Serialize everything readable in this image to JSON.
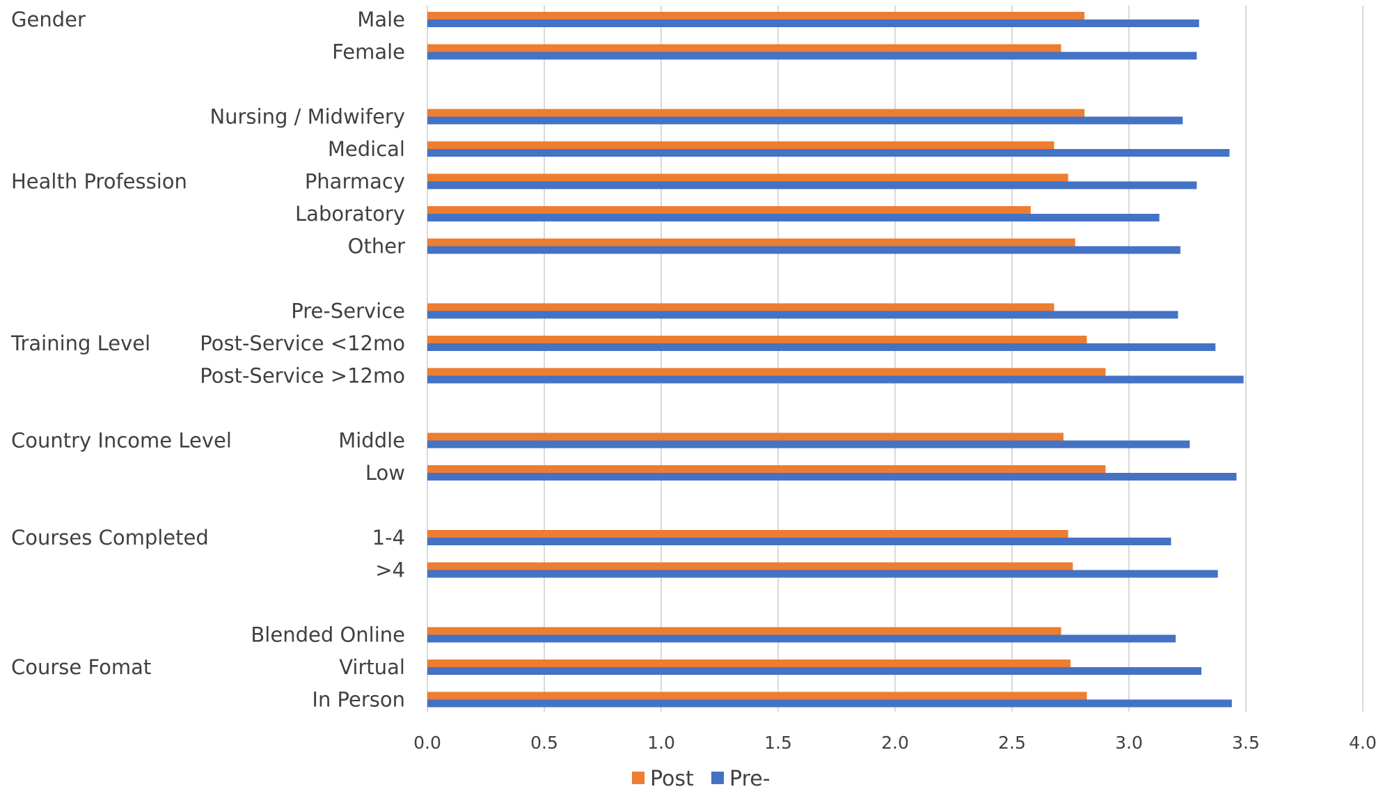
{
  "chart_data": {
    "type": "bar",
    "orientation": "horizontal",
    "title": "",
    "xlabel": "",
    "ylabel": "",
    "xlim": [
      0,
      4
    ],
    "xticks": [
      "0.0",
      "0.5",
      "1.0",
      "1.5",
      "2.0",
      "2.5",
      "3.0",
      "3.5",
      "4.0"
    ],
    "grid": "vertical",
    "legend": "bottom-center",
    "colors": {
      "Post": "#ed7d31",
      "Pre-": "#4472c4"
    },
    "groups": [
      {
        "label": "Gender",
        "categories": [
          "Male",
          "Female"
        ]
      },
      {
        "label": "Health Profession",
        "categories": [
          "Nursing / Midwifery",
          "Medical",
          "Pharmacy",
          "Laboratory",
          "Other"
        ]
      },
      {
        "label": "Training Level",
        "categories": [
          "Pre-Service",
          "Post-Service <12mo",
          "Post-Service >12mo"
        ]
      },
      {
        "label": "Country Income Level",
        "categories": [
          "Middle",
          "Low"
        ]
      },
      {
        "label": "Courses Completed",
        "categories": [
          "1-4",
          ">4"
        ]
      },
      {
        "label": "Course Fomat",
        "categories": [
          "Blended Online",
          "Virtual",
          "In Person"
        ]
      }
    ],
    "series": [
      {
        "name": "Post",
        "values": [
          2.81,
          2.71,
          2.81,
          2.68,
          2.74,
          2.58,
          2.77,
          2.68,
          2.82,
          2.9,
          2.72,
          2.9,
          2.74,
          2.76,
          2.71,
          2.75,
          2.82
        ]
      },
      {
        "name": "Pre-",
        "values": [
          3.3,
          3.29,
          3.23,
          3.43,
          3.29,
          3.13,
          3.22,
          3.21,
          3.37,
          3.49,
          3.26,
          3.46,
          3.18,
          3.38,
          3.2,
          3.31,
          3.44
        ]
      }
    ]
  }
}
